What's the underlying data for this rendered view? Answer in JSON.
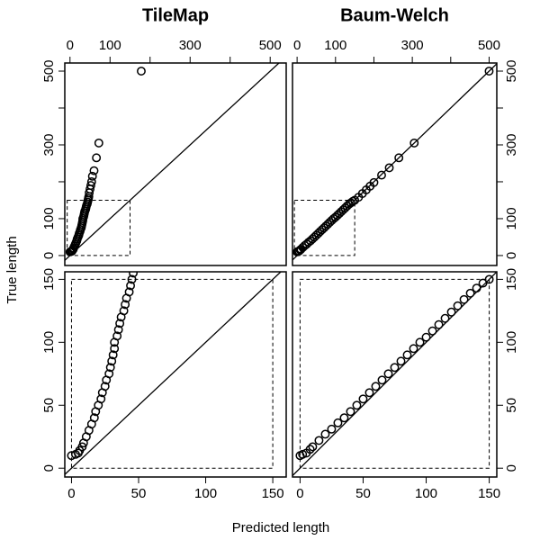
{
  "xlabel": "Predicted length",
  "ylabel": "True length",
  "chart_data": [
    {
      "type": "scatter",
      "title": "TileMap",
      "color": "#000000",
      "x": [
        0,
        3,
        5,
        6,
        8,
        9,
        11,
        13,
        15,
        17,
        18,
        20,
        22,
        23,
        25,
        26,
        28,
        29,
        30,
        31,
        32,
        32,
        34,
        35,
        36,
        37,
        39,
        40,
        41,
        43,
        44,
        45,
        46,
        47,
        48,
        50,
        52,
        54,
        56,
        60,
        66,
        72,
        178
      ],
      "y": [
        10,
        11,
        12,
        14,
        17,
        20,
        25,
        30,
        35,
        40,
        45,
        50,
        55,
        60,
        65,
        70,
        75,
        80,
        85,
        90,
        95,
        100,
        105,
        110,
        115,
        120,
        125,
        130,
        135,
        140,
        145,
        150,
        155,
        160,
        170,
        180,
        190,
        200,
        215,
        230,
        265,
        305,
        500
      ],
      "xlim": [
        -13,
        540
      ],
      "ylim": [
        -27,
        522
      ],
      "xticks": [
        0,
        100,
        300,
        500
      ],
      "xticks_unlabeled": [
        200,
        400
      ],
      "yticks": [
        0,
        100,
        300,
        500
      ],
      "yticks_unlabeled": [
        200,
        400
      ],
      "xaxis_side": "top",
      "yaxis_side": "left",
      "diagonal": true,
      "dashed_box": {
        "x": [
          -7,
          150
        ],
        "y": [
          0,
          150
        ]
      }
    },
    {
      "type": "scatter",
      "title": "Baum-Welch",
      "color": "#000000",
      "x": [
        0,
        2,
        5,
        8,
        10,
        15,
        20,
        25,
        30,
        35,
        40,
        45,
        50,
        55,
        60,
        65,
        70,
        75,
        80,
        85,
        90,
        95,
        100,
        105,
        110,
        115,
        120,
        125,
        130,
        135,
        140,
        145,
        150,
        160,
        170,
        180,
        190,
        200,
        220,
        240,
        265,
        305,
        500
      ],
      "y": [
        10,
        11,
        12,
        15,
        17,
        22,
        27,
        31,
        36,
        40,
        45,
        50,
        55,
        60,
        65,
        70,
        75,
        80,
        85,
        90,
        95,
        100,
        104,
        109,
        114,
        119,
        124,
        129,
        134,
        139,
        143,
        147,
        150,
        158,
        168,
        178,
        188,
        198,
        218,
        238,
        265,
        305,
        500
      ],
      "xlim": [
        -12,
        520
      ],
      "ylim": [
        -27,
        522
      ],
      "xticks": [
        0,
        100,
        300,
        500
      ],
      "xticks_unlabeled": [
        200,
        400
      ],
      "yticks": [
        0,
        100,
        300,
        500
      ],
      "yticks_unlabeled": [
        200,
        400
      ],
      "xaxis_side": "top",
      "yaxis_side": "right",
      "diagonal": true,
      "dashed_box": {
        "x": [
          -7,
          150
        ],
        "y": [
          0,
          150
        ]
      }
    },
    {
      "type": "scatter",
      "color": "#000000",
      "x": [
        0,
        3,
        5,
        6,
        8,
        9,
        11,
        13,
        15,
        17,
        18,
        20,
        22,
        23,
        25,
        26,
        28,
        29,
        30,
        31,
        32,
        32,
        34,
        35,
        36,
        37,
        39,
        40,
        41,
        43,
        44,
        45,
        46
      ],
      "y": [
        10,
        11,
        12,
        14,
        17,
        20,
        25,
        30,
        35,
        40,
        45,
        50,
        55,
        60,
        65,
        70,
        75,
        80,
        85,
        90,
        95,
        100,
        105,
        110,
        115,
        120,
        125,
        130,
        135,
        140,
        145,
        150,
        155
      ],
      "xlim": [
        -5,
        160
      ],
      "ylim": [
        -7,
        156
      ],
      "xticks": [
        0,
        50,
        100,
        150
      ],
      "yticks": [
        0,
        50,
        100,
        150
      ],
      "xaxis_side": "bottom",
      "yaxis_side": "left",
      "diagonal": true,
      "dashed_box": {
        "x": [
          0,
          150
        ],
        "y": [
          0,
          150
        ]
      }
    },
    {
      "type": "scatter",
      "color": "#000000",
      "x": [
        0,
        2,
        5,
        8,
        10,
        15,
        20,
        25,
        30,
        35,
        40,
        45,
        50,
        55,
        60,
        65,
        70,
        75,
        80,
        85,
        90,
        95,
        100,
        105,
        110,
        115,
        120,
        125,
        130,
        135,
        140,
        145,
        150
      ],
      "y": [
        10,
        11,
        12,
        15,
        17,
        22,
        27,
        31,
        36,
        40,
        45,
        50,
        55,
        60,
        65,
        70,
        75,
        80,
        85,
        90,
        95,
        100,
        104,
        109,
        114,
        119,
        124,
        129,
        134,
        139,
        143,
        147,
        150
      ],
      "xlim": [
        -6,
        156
      ],
      "ylim": [
        -7,
        156
      ],
      "xticks": [
        0,
        50,
        100,
        150
      ],
      "yticks": [
        0,
        50,
        100,
        150
      ],
      "xaxis_side": "bottom",
      "yaxis_side": "right",
      "diagonal": true,
      "dashed_box": {
        "x": [
          0,
          150
        ],
        "y": [
          0,
          150
        ]
      }
    }
  ]
}
